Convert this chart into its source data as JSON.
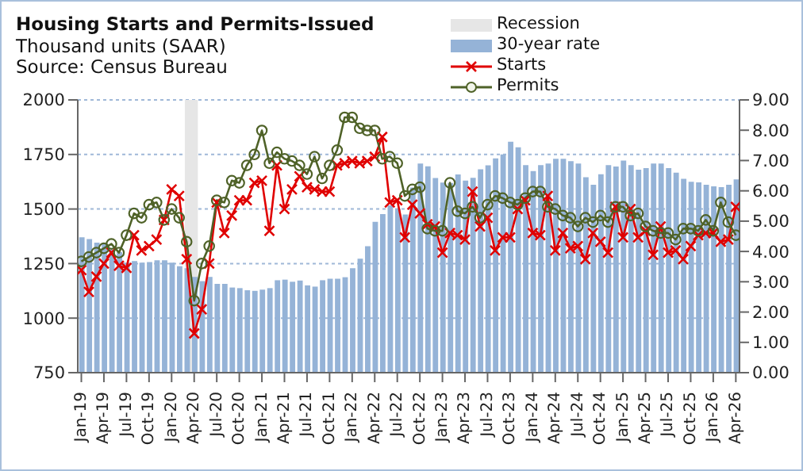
{
  "chart_data": {
    "type": "line",
    "title": "Housing Starts and Permits-Issued",
    "subtitle": "Thousand units (SAAR)",
    "annotations": [
      "Source: Census Bureau"
    ],
    "x": [
      "2019-01",
      "2019-02",
      "2019-03",
      "2019-04",
      "2019-05",
      "2019-06",
      "2019-07",
      "2019-08",
      "2019-09",
      "2019-10",
      "2019-11",
      "2019-12",
      "2020-01",
      "2020-02",
      "2020-03",
      "2020-04",
      "2020-05",
      "2020-06",
      "2020-07",
      "2020-08",
      "2020-09",
      "2020-10",
      "2020-11",
      "2020-12",
      "2021-01",
      "2021-02",
      "2021-03",
      "2021-04",
      "2021-05",
      "2021-06",
      "2021-07",
      "2021-08",
      "2021-09",
      "2021-10",
      "2021-11",
      "2021-12",
      "2022-01",
      "2022-02",
      "2022-03",
      "2022-04",
      "2022-05",
      "2022-06",
      "2022-07",
      "2022-08",
      "2022-09",
      "2022-10",
      "2022-11",
      "2022-12",
      "2023-01",
      "2023-02",
      "2023-03",
      "2023-04",
      "2023-05",
      "2023-06",
      "2023-07",
      "2023-08",
      "2023-09",
      "2023-10",
      "2023-11",
      "2023-12",
      "2024-01",
      "2024-02",
      "2024-03",
      "2024-04",
      "2024-05",
      "2024-06",
      "2024-07",
      "2024-08",
      "2024-09",
      "2024-10",
      "2024-11",
      "2024-12",
      "2025-01",
      "2025-02",
      "2025-03",
      "2025-04",
      "2025-05",
      "2025-06",
      "2025-07",
      "2025-08",
      "2025-09",
      "2025-10",
      "2025-11",
      "2025-12",
      "2026-01",
      "2026-02",
      "2026-03",
      "2026-04"
    ],
    "xlim": [
      "2018-12-17",
      "2026-04-16"
    ],
    "xticks": [
      {
        "value": "2019-01",
        "label": "Jan-19"
      },
      {
        "value": "2019-04",
        "label": "Apr-19"
      },
      {
        "value": "2019-07",
        "label": "Jul-19"
      },
      {
        "value": "2019-10",
        "label": "Oct-19"
      },
      {
        "value": "2020-01",
        "label": "Jan-20"
      },
      {
        "value": "2020-04",
        "label": "Apr-20"
      },
      {
        "value": "2020-07",
        "label": "Jul-20"
      },
      {
        "value": "2020-10",
        "label": "Oct-20"
      },
      {
        "value": "2021-01",
        "label": "Jan-21"
      },
      {
        "value": "2021-04",
        "label": "Apr-21"
      },
      {
        "value": "2021-07",
        "label": "Jul-21"
      },
      {
        "value": "2021-10",
        "label": "Oct-21"
      },
      {
        "value": "2022-01",
        "label": "Jan-22"
      },
      {
        "value": "2022-04",
        "label": "Apr-22"
      },
      {
        "value": "2022-07",
        "label": "Jul-22"
      },
      {
        "value": "2022-10",
        "label": "Oct-22"
      },
      {
        "value": "2023-01",
        "label": "Jan-23"
      },
      {
        "value": "2023-04",
        "label": "Apr-23"
      },
      {
        "value": "2023-07",
        "label": "Jul-23"
      },
      {
        "value": "2023-10",
        "label": "Oct-23"
      },
      {
        "value": "2024-01",
        "label": "Jan-24"
      },
      {
        "value": "2024-04",
        "label": "Apr-24"
      },
      {
        "value": "2024-07",
        "label": "Jul-24"
      },
      {
        "value": "2024-10",
        "label": "Oct-24"
      },
      {
        "value": "2025-01",
        "label": "Jan-25"
      },
      {
        "value": "2025-04",
        "label": "Apr-25"
      },
      {
        "value": "2025-07",
        "label": "Jul-25"
      },
      {
        "value": "2025-10",
        "label": "Oct-25"
      },
      {
        "value": "2026-01",
        "label": "Jan-26"
      },
      {
        "value": "2026-04",
        "label": "Apr-26"
      }
    ],
    "ylim": [
      750,
      2000
    ],
    "yticks": [
      750,
      1000,
      1250,
      1500,
      1750,
      2000
    ],
    "y2lim": [
      0,
      9
    ],
    "y2ticks": [
      {
        "value": 0,
        "label": "0.00"
      },
      {
        "value": 1,
        "label": "1.00"
      },
      {
        "value": 2,
        "label": "2.00"
      },
      {
        "value": 3,
        "label": "3.00"
      },
      {
        "value": 4,
        "label": "4.00"
      },
      {
        "value": 5,
        "label": "5.00"
      },
      {
        "value": 6,
        "label": "6.00"
      },
      {
        "value": 7,
        "label": "7.00"
      },
      {
        "value": 8,
        "label": "8.00"
      },
      {
        "value": 9,
        "label": "9.00"
      }
    ],
    "grid": "y",
    "legend": "top right",
    "bands": [
      {
        "axis": "x",
        "from": "2020-02-24",
        "to": "2020-04-16",
        "label": "Recession",
        "color": "#e6e6e6"
      }
    ],
    "series": [
      {
        "name": "30-year rate",
        "type": "bar",
        "axis": "y2",
        "color": "#95b3d7",
        "values": [
          4.47,
          4.41,
          4.29,
          4.24,
          4.06,
          3.98,
          3.63,
          3.68,
          3.63,
          3.65,
          3.71,
          3.71,
          3.63,
          3.51,
          3.45,
          3.16,
          3.02,
          3.16,
          2.93,
          2.93,
          2.81,
          2.79,
          2.72,
          2.7,
          2.74,
          2.79,
          3.05,
          3.07,
          3.0,
          3.04,
          2.88,
          2.84,
          3.05,
          3.1,
          3.1,
          3.15,
          3.45,
          3.76,
          4.17,
          4.98,
          5.23,
          5.52,
          5.41,
          5.22,
          6.11,
          6.9,
          6.81,
          6.42,
          6.27,
          6.26,
          6.54,
          6.34,
          6.43,
          6.71,
          6.84,
          7.07,
          7.2,
          7.62,
          7.44,
          6.85,
          6.65,
          6.85,
          6.9,
          7.06,
          7.06,
          6.98,
          6.9,
          6.45,
          6.2,
          6.55,
          6.85,
          6.8,
          7.0,
          6.85,
          6.7,
          6.75,
          6.9,
          6.9,
          6.75,
          6.6,
          6.4,
          6.3,
          6.28,
          6.2,
          6.15,
          6.12,
          6.2,
          6.38
        ]
      },
      {
        "name": "Starts",
        "marker": "cross",
        "color": "#e00000",
        "values": [
          1220,
          1120,
          1190,
          1250,
          1300,
          1240,
          1230,
          1380,
          1310,
          1330,
          1360,
          1450,
          1590,
          1560,
          1270,
          930,
          1040,
          1250,
          1530,
          1390,
          1470,
          1540,
          1540,
          1620,
          1630,
          1400,
          1700,
          1500,
          1590,
          1650,
          1600,
          1590,
          1580,
          1580,
          1700,
          1710,
          1720,
          1710,
          1720,
          1740,
          1830,
          1530,
          1540,
          1370,
          1520,
          1480,
          1430,
          1420,
          1300,
          1390,
          1380,
          1360,
          1580,
          1420,
          1460,
          1310,
          1370,
          1370,
          1500,
          1540,
          1390,
          1380,
          1560,
          1310,
          1390,
          1320,
          1330,
          1270,
          1390,
          1350,
          1300,
          1510,
          1370,
          1500,
          1370,
          1400,
          1290,
          1420,
          1300,
          1310,
          1270,
          1330,
          1380,
          1390,
          1390,
          1350,
          1360,
          1510
        ]
      },
      {
        "name": "Permits",
        "marker": "circle",
        "color": "#4f6228",
        "values": [
          1260,
          1280,
          1300,
          1320,
          1340,
          1300,
          1380,
          1480,
          1460,
          1520,
          1530,
          1450,
          1500,
          1460,
          1350,
          1080,
          1250,
          1330,
          1540,
          1530,
          1630,
          1620,
          1700,
          1750,
          1860,
          1710,
          1760,
          1730,
          1720,
          1700,
          1660,
          1740,
          1640,
          1700,
          1770,
          1920,
          1920,
          1870,
          1860,
          1860,
          1730,
          1740,
          1710,
          1560,
          1590,
          1600,
          1410,
          1400,
          1400,
          1620,
          1490,
          1480,
          1510,
          1460,
          1520,
          1560,
          1550,
          1530,
          1520,
          1550,
          1580,
          1580,
          1510,
          1500,
          1470,
          1460,
          1420,
          1460,
          1440,
          1470,
          1440,
          1510,
          1510,
          1470,
          1480,
          1420,
          1400,
          1390,
          1390,
          1360,
          1410,
          1410,
          1400,
          1450,
          1400,
          1530,
          1440,
          1380
        ]
      }
    ]
  }
}
